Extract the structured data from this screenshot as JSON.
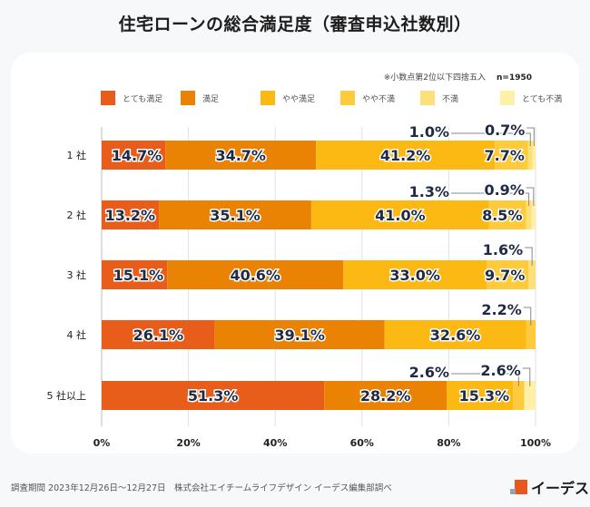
{
  "title": "住宅ローンの総合満足度（審査申込社数別）",
  "note": "※小数点第2位以下四捨五入",
  "sample": "n=1950",
  "footer": "調査期間 2023年12月26日〜12月27日　株式会社エイチームライフデザイン イーデス編集部調べ",
  "logo_text": "イーデス",
  "chart_data": {
    "type": "bar",
    "orientation": "horizontal-stacked-100",
    "title": "住宅ローンの総合満足度（審査申込社数別）",
    "categories": [
      "1 社",
      "2 社",
      "3 社",
      "4 社",
      "5 社以上"
    ],
    "series": [
      {
        "name": "とても満足",
        "color": "#e95d1a",
        "values": [
          14.7,
          13.2,
          15.1,
          26.1,
          51.3
        ]
      },
      {
        "name": "満足",
        "color": "#ea8203",
        "values": [
          34.7,
          35.1,
          40.6,
          39.1,
          28.2
        ]
      },
      {
        "name": "やや満足",
        "color": "#fdb913",
        "values": [
          41.2,
          41.0,
          33.0,
          32.6,
          15.3
        ]
      },
      {
        "name": "やや不満",
        "color": "#fecb3d",
        "values": [
          7.7,
          8.5,
          9.7,
          2.2,
          2.6
        ]
      },
      {
        "name": "不満",
        "color": "#fee07a",
        "values": [
          1.0,
          1.3,
          1.6,
          0,
          0
        ]
      },
      {
        "name": "とても不満",
        "color": "#fff0a8",
        "values": [
          0.7,
          0.9,
          0,
          0,
          2.6
        ]
      }
    ],
    "xticks": [
      "0%",
      "20%",
      "40%",
      "60%",
      "80%",
      "100%"
    ],
    "xlim": [
      0,
      100
    ],
    "legend": "top",
    "grid": true
  }
}
